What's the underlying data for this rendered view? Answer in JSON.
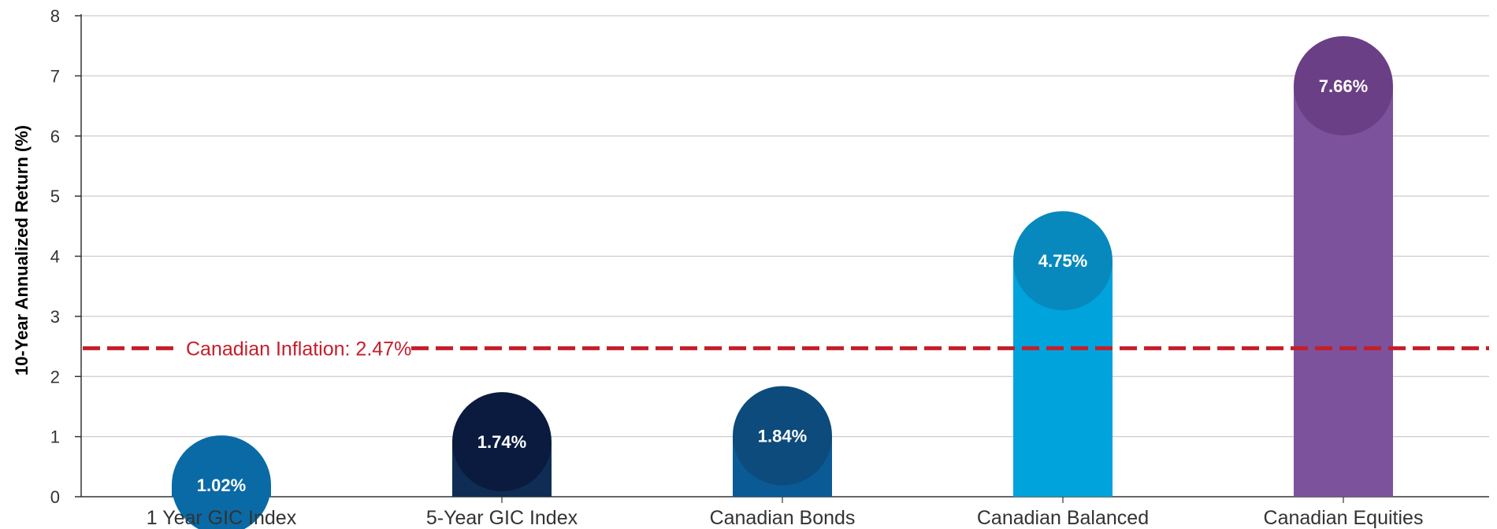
{
  "chart_data": {
    "type": "bar",
    "title": "",
    "xlabel": "",
    "ylabel": "10-Year Annualized Return (%)",
    "ylim": [
      0,
      8
    ],
    "yticks": [
      "0",
      "1",
      "2",
      "3",
      "4",
      "5",
      "6",
      "7",
      "8"
    ],
    "grid": true,
    "categories": [
      "1 Year GIC Index",
      "5-Year GIC Index",
      "Canadian Bonds",
      "Canadian Balanced",
      "Canadian Equities"
    ],
    "values": [
      1.02,
      1.74,
      1.84,
      4.75,
      7.66
    ],
    "value_labels": [
      "1.02%",
      "1.74%",
      "1.84%",
      "4.75%",
      "7.66%"
    ],
    "bar_colors": [
      "#0a6aa6",
      "#0f2d54",
      "#0a5a96",
      "#00a3dc",
      "#7d529c"
    ],
    "bubble_colors": [
      "#0a6aa6",
      "#0a1b3f",
      "#0c4b7c",
      "#0789bd",
      "#6a3f85"
    ],
    "reference_line": {
      "label": "Canadian Inflation: 2.47%",
      "value": 2.47,
      "color": "#c41e2a",
      "style": "dashed"
    }
  }
}
